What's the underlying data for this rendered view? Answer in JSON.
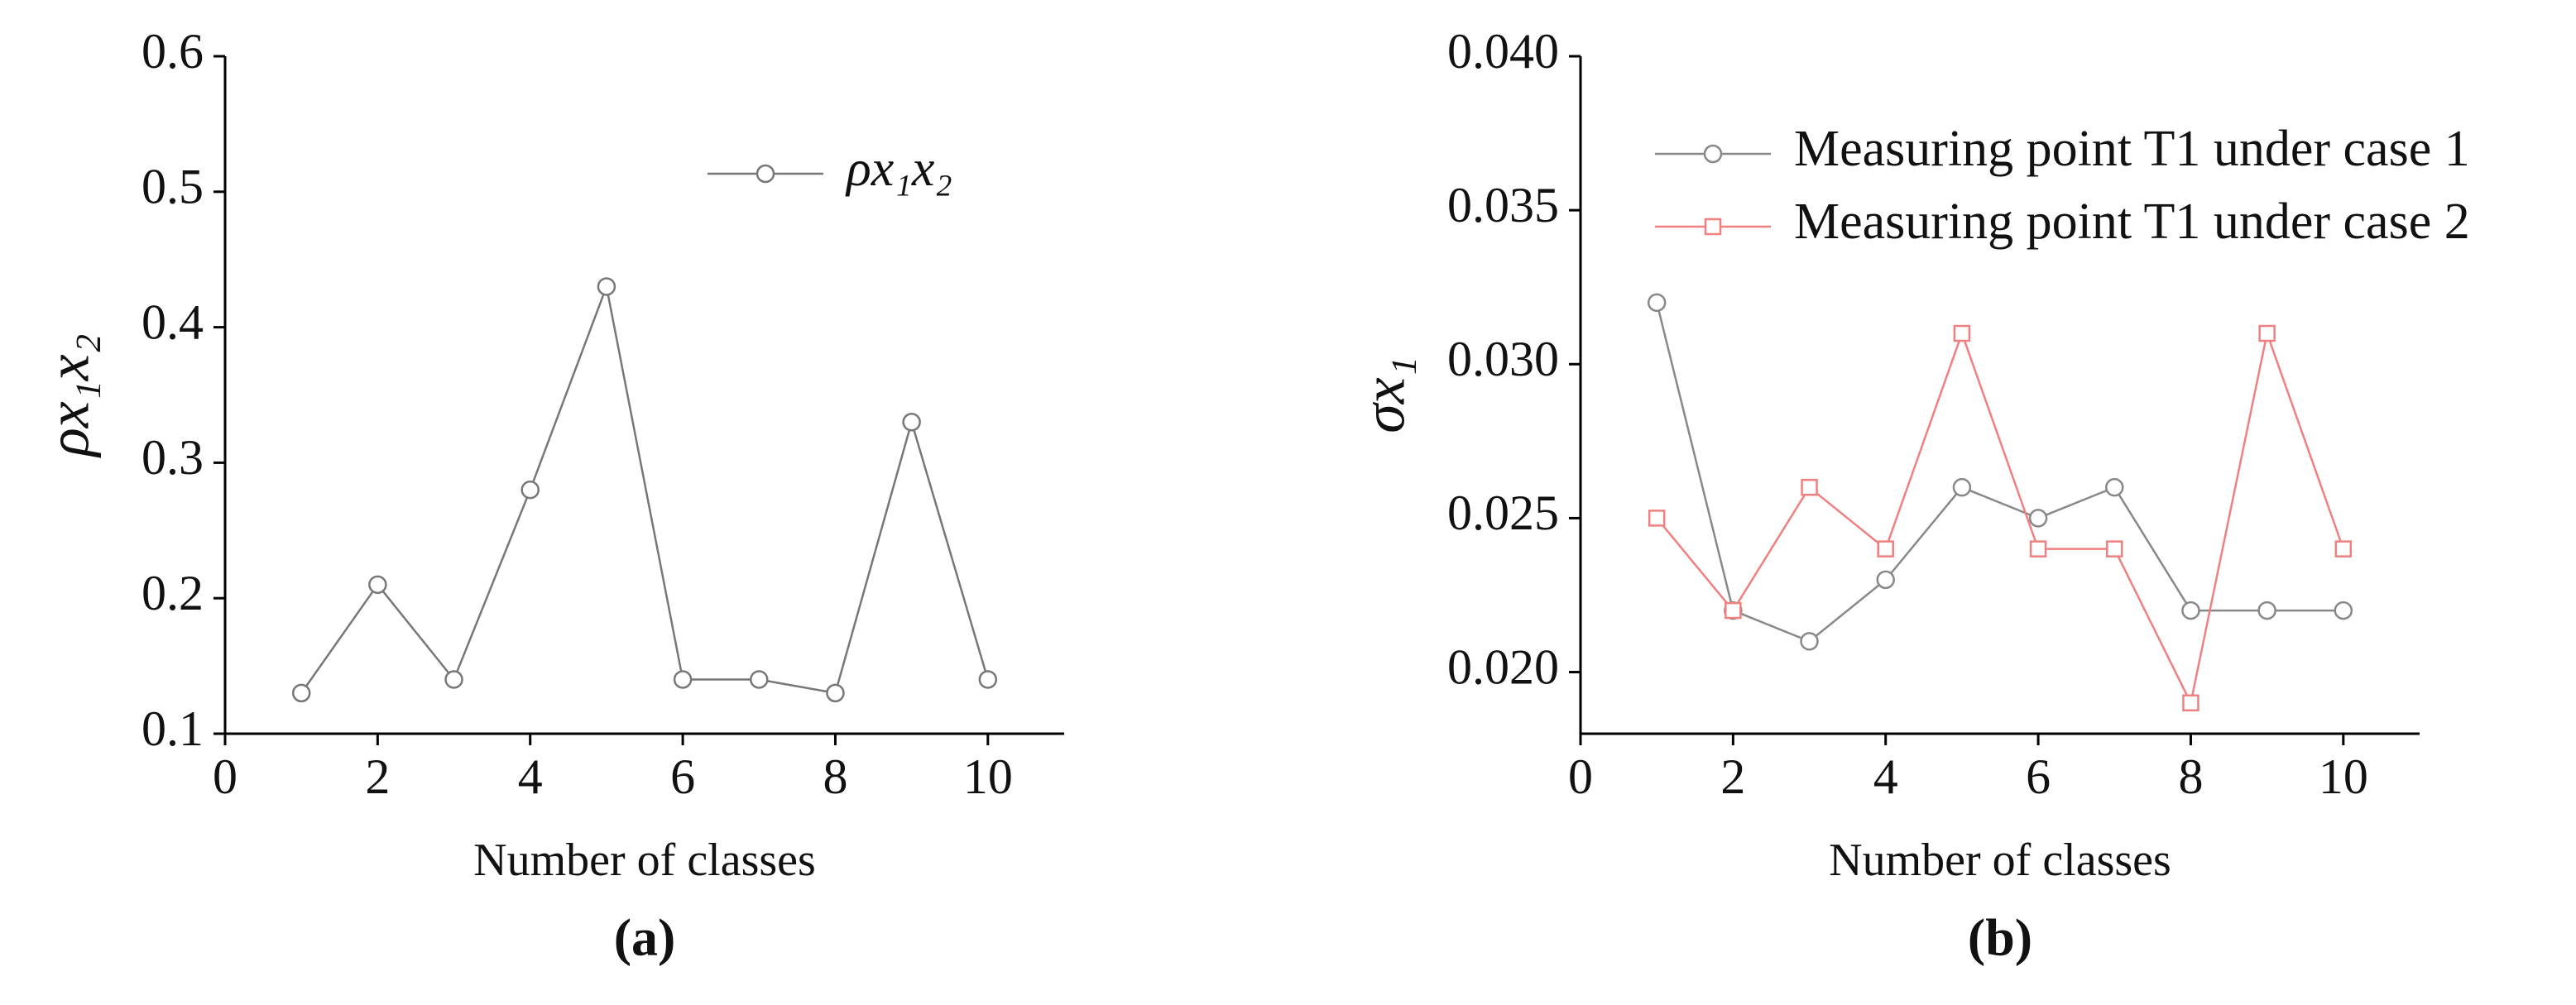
{
  "chart_data": [
    {
      "type": "line",
      "xlabel": "Number of classes",
      "ylabel": "ρx₁x₂",
      "caption": "(a)",
      "x": [
        1,
        2,
        3,
        4,
        5,
        6,
        7,
        8,
        9,
        10
      ],
      "xlim": [
        0,
        11
      ],
      "xticks": [
        0,
        2,
        4,
        6,
        8,
        10
      ],
      "ylim": [
        0.1,
        0.6
      ],
      "yticks": [
        0.1,
        0.2,
        0.3,
        0.4,
        0.5,
        0.6
      ],
      "legend": "upper right",
      "series": [
        {
          "name": "ρx₁x₂",
          "color": "#777777",
          "marker": "circle",
          "values": [
            0.13,
            0.21,
            0.14,
            0.28,
            0.43,
            0.14,
            0.14,
            0.13,
            0.33,
            0.14
          ]
        }
      ]
    },
    {
      "type": "line",
      "xlabel": "Number of classes",
      "ylabel": "σx₁",
      "caption": "(b)",
      "x": [
        1,
        2,
        3,
        4,
        5,
        6,
        7,
        8,
        9,
        10
      ],
      "xlim": [
        0,
        11
      ],
      "xticks": [
        0,
        2,
        4,
        6,
        8,
        10
      ],
      "ylim": [
        0.018,
        0.04
      ],
      "yticks": [
        {
          "value": 0.02,
          "label": "0.020"
        },
        0.025,
        {
          "value": 0.03,
          "label": "0.030"
        },
        0.035,
        {
          "value": 0.04,
          "label": "0.040"
        }
      ],
      "legend": "upper right",
      "series": [
        {
          "name": "Measuring point T1 under case 1",
          "color": "#888888",
          "marker": "circle",
          "values": [
            0.032,
            0.022,
            0.021,
            0.023,
            0.026,
            0.025,
            0.026,
            0.022,
            0.022,
            0.022
          ]
        },
        {
          "name": "Measuring point T1 under case 2",
          "color": "#f08080",
          "marker": "square",
          "values": [
            0.025,
            0.022,
            0.026,
            0.024,
            0.031,
            0.024,
            0.024,
            0.019,
            0.031,
            0.024
          ]
        }
      ]
    }
  ]
}
